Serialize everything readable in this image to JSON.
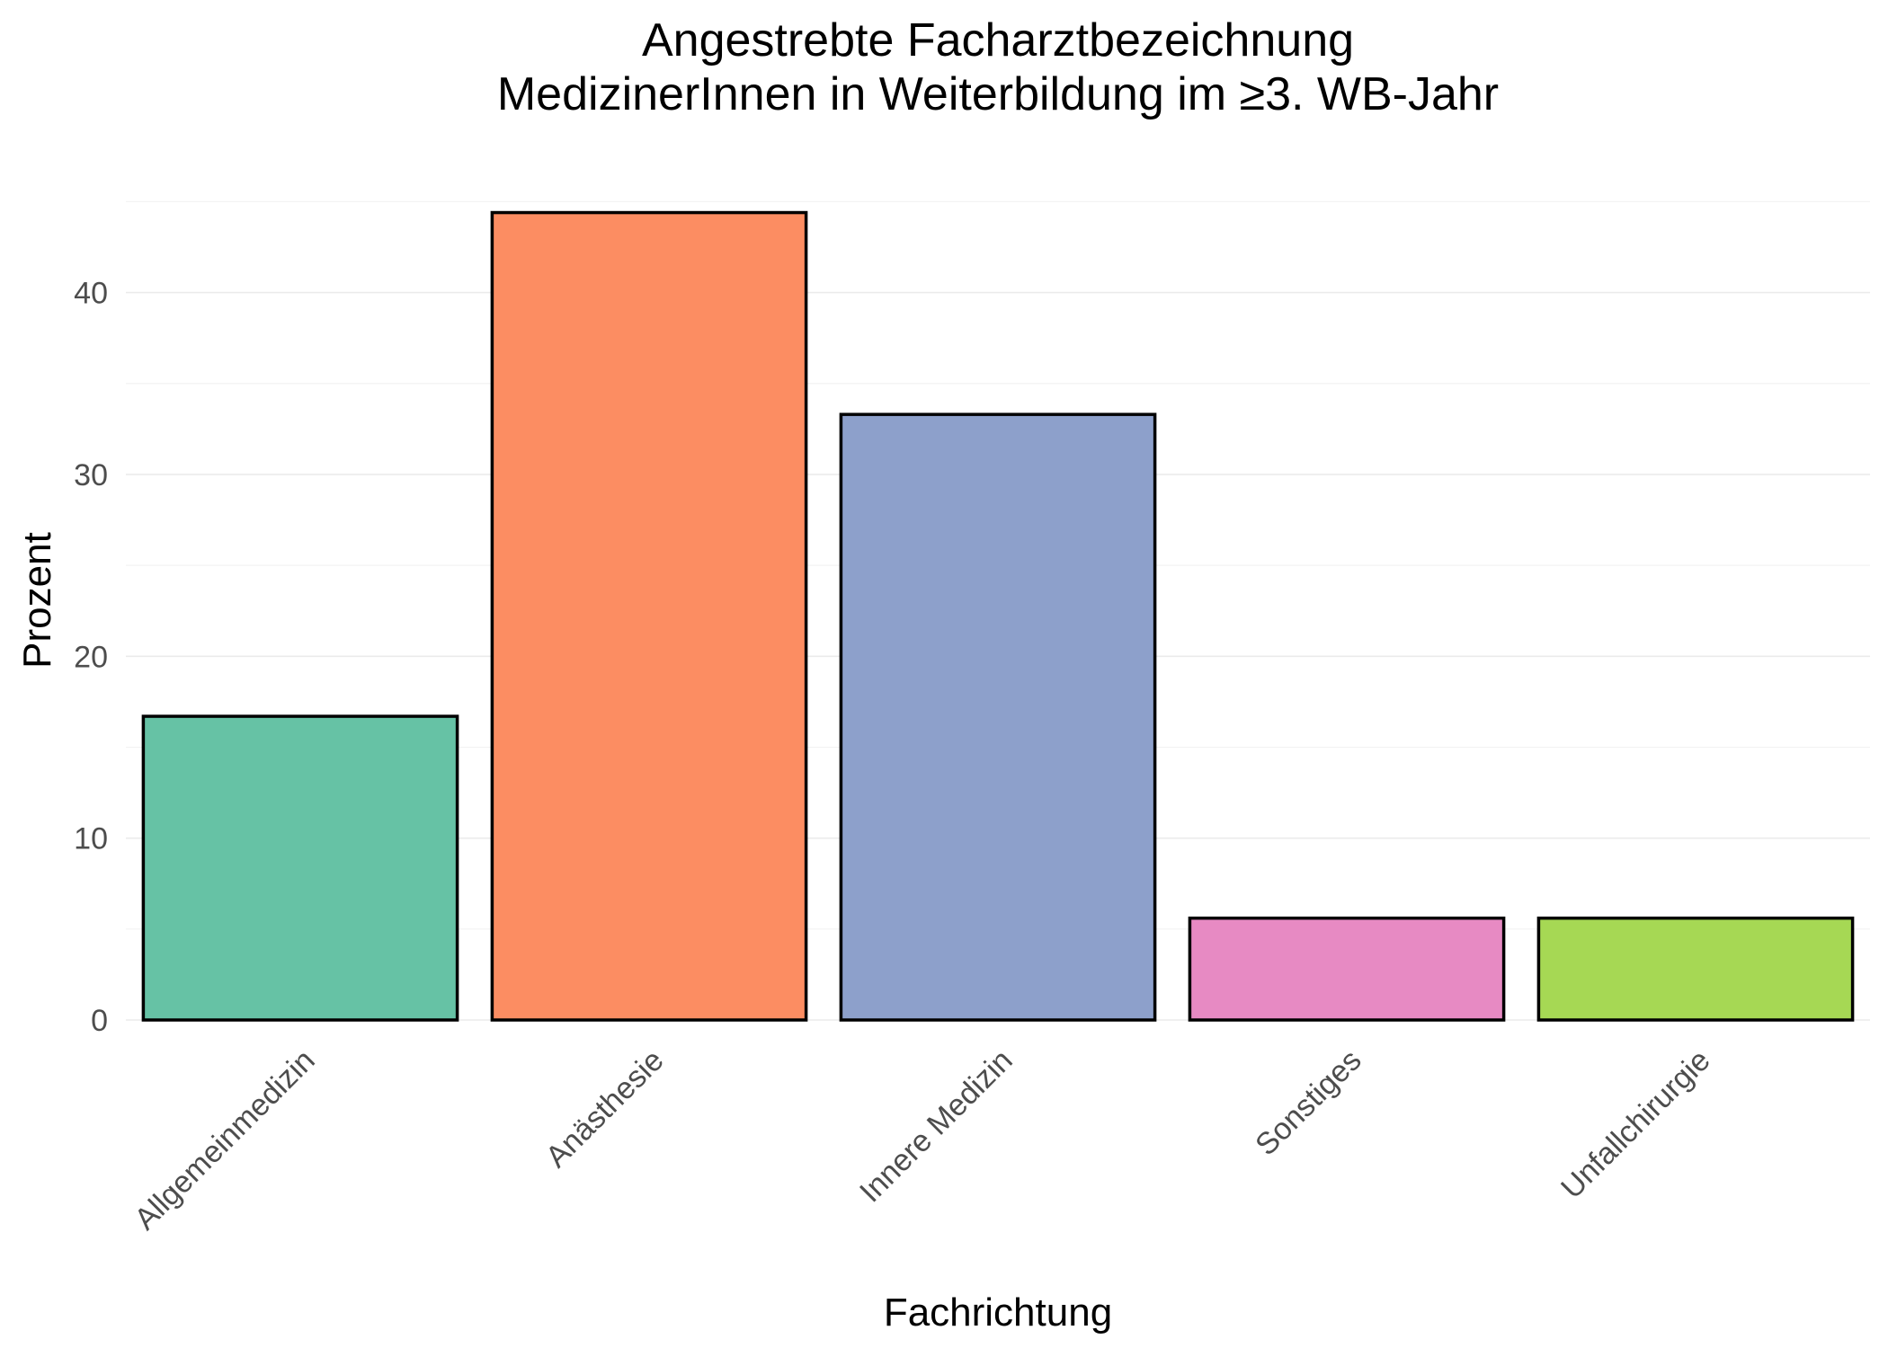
{
  "chart_data": {
    "type": "bar",
    "title": "Angestrebte Facharztbezeichnung",
    "subtitle": "MedizinerInnen in Weiterbildung im ≥3. WB-Jahr",
    "xlabel": "Fachrichtung",
    "ylabel": "Prozent",
    "categories": [
      "Allgemeinmedizin",
      "Anästhesie",
      "Innere Medizin",
      "Sonstiges",
      "Unfallchirurgie"
    ],
    "values": [
      16.7,
      44.4,
      33.3,
      5.6,
      5.6
    ],
    "colors": [
      "#66c2a5",
      "#fc8d62",
      "#8da0cb",
      "#e78ac3",
      "#a6d854"
    ],
    "ylim": [
      0,
      46.7
    ],
    "yticks": [
      0,
      10,
      20,
      30,
      40
    ],
    "ytick_labels": [
      "0",
      "10",
      "20",
      "30",
      "40"
    ],
    "grid": true,
    "legend": "none"
  }
}
